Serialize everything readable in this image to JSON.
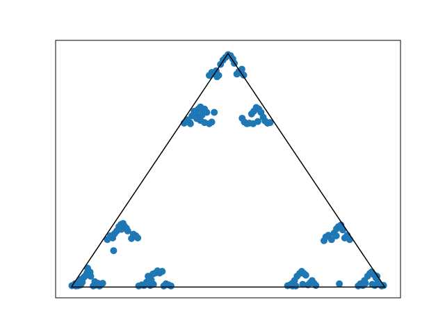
{
  "chart_data": {
    "type": "scatter",
    "title": "",
    "xlabel": "",
    "ylabel": "",
    "axes_ticks": "none",
    "grid": false,
    "legend": "none",
    "colors": {
      "points": "#1f77b4",
      "triangle": "#000000",
      "frame": "#000000"
    },
    "xlim": [
      -0.05,
      1.05
    ],
    "ylim": [
      -0.04,
      0.915
    ],
    "triangle": {
      "x": [
        0,
        0.5,
        1,
        0
      ],
      "y": [
        0,
        0.866,
        0,
        0
      ]
    },
    "series": [
      {
        "points": [
          [
            0.002,
            0.005
          ],
          [
            0.008,
            0.006
          ],
          [
            0.015,
            0.004
          ],
          [
            0.022,
            0.005
          ],
          [
            0.012,
            0.012
          ],
          [
            0.02,
            0.014
          ],
          [
            0.03,
            0.008
          ],
          [
            0.035,
            0.018
          ],
          [
            0.028,
            0.028
          ],
          [
            0.04,
            0.036
          ],
          [
            0.045,
            0.042
          ],
          [
            0.05,
            0.052
          ],
          [
            0.055,
            0.06
          ],
          [
            0.06,
            0.055
          ],
          [
            0.052,
            0.07
          ],
          [
            0.062,
            0.04
          ],
          [
            0.07,
            0.004
          ],
          [
            0.078,
            0.007
          ],
          [
            0.085,
            0.014
          ],
          [
            0.09,
            0.004
          ],
          [
            0.075,
            0.02
          ],
          [
            0.095,
            0.008
          ],
          [
            0.1,
            0.014
          ],
          [
            0.215,
            0.004
          ],
          [
            0.225,
            0.008
          ],
          [
            0.232,
            0.006
          ],
          [
            0.24,
            0.018
          ],
          [
            0.248,
            0.014
          ],
          [
            0.255,
            0.026
          ],
          [
            0.245,
            0.04
          ],
          [
            0.26,
            0.048
          ],
          [
            0.268,
            0.052
          ],
          [
            0.275,
            0.06
          ],
          [
            0.282,
            0.052
          ],
          [
            0.29,
            0.058
          ],
          [
            0.252,
            0.006
          ],
          [
            0.262,
            0.01
          ],
          [
            0.295,
            0.004
          ],
          [
            0.302,
            0.012
          ],
          [
            0.31,
            0.008
          ],
          [
            0.318,
            0.004
          ],
          [
            0.115,
            0.176
          ],
          [
            0.125,
            0.19
          ],
          [
            0.132,
            0.182
          ],
          [
            0.138,
            0.198
          ],
          [
            0.145,
            0.208
          ],
          [
            0.152,
            0.224
          ],
          [
            0.158,
            0.232
          ],
          [
            0.165,
            0.236
          ],
          [
            0.17,
            0.225
          ],
          [
            0.176,
            0.218
          ],
          [
            0.18,
            0.208
          ],
          [
            0.192,
            0.18
          ],
          [
            0.198,
            0.196
          ],
          [
            0.206,
            0.19
          ],
          [
            0.212,
            0.182
          ],
          [
            0.135,
            0.135
          ],
          [
            0.16,
            0.214
          ],
          [
            0.36,
            0.608
          ],
          [
            0.37,
            0.62
          ],
          [
            0.378,
            0.61
          ],
          [
            0.385,
            0.635
          ],
          [
            0.392,
            0.652
          ],
          [
            0.398,
            0.64
          ],
          [
            0.405,
            0.66
          ],
          [
            0.412,
            0.668
          ],
          [
            0.418,
            0.654
          ],
          [
            0.425,
            0.66
          ],
          [
            0.432,
            0.648
          ],
          [
            0.412,
            0.618
          ],
          [
            0.425,
            0.61
          ],
          [
            0.44,
            0.606
          ],
          [
            0.448,
            0.612
          ],
          [
            0.38,
            0.606
          ],
          [
            0.4,
            0.625
          ],
          [
            0.417,
            0.638
          ],
          [
            0.456,
            0.648
          ],
          [
            0.44,
            0.785
          ],
          [
            0.448,
            0.796
          ],
          [
            0.455,
            0.79
          ],
          [
            0.462,
            0.802
          ],
          [
            0.47,
            0.785
          ],
          [
            0.476,
            0.826
          ],
          [
            0.484,
            0.842
          ],
          [
            0.492,
            0.852
          ],
          [
            0.5,
            0.862
          ],
          [
            0.508,
            0.858
          ],
          [
            0.515,
            0.846
          ],
          [
            0.52,
            0.83
          ],
          [
            0.528,
            0.79
          ],
          [
            0.535,
            0.8
          ],
          [
            0.542,
            0.794
          ],
          [
            0.55,
            0.786
          ],
          [
            0.544,
            0.808
          ],
          [
            0.465,
            0.78
          ],
          [
            0.545,
            0.626
          ],
          [
            0.552,
            0.612
          ],
          [
            0.56,
            0.606
          ],
          [
            0.568,
            0.608
          ],
          [
            0.575,
            0.642
          ],
          [
            0.582,
            0.652
          ],
          [
            0.59,
            0.666
          ],
          [
            0.598,
            0.66
          ],
          [
            0.605,
            0.648
          ],
          [
            0.612,
            0.63
          ],
          [
            0.618,
            0.616
          ],
          [
            0.626,
            0.608
          ],
          [
            0.634,
            0.61
          ],
          [
            0.595,
            0.614
          ],
          [
            0.58,
            0.606
          ],
          [
            0.69,
            0.005
          ],
          [
            0.698,
            0.008
          ],
          [
            0.705,
            0.014
          ],
          [
            0.712,
            0.024
          ],
          [
            0.72,
            0.04
          ],
          [
            0.728,
            0.05
          ],
          [
            0.735,
            0.058
          ],
          [
            0.742,
            0.05
          ],
          [
            0.748,
            0.044
          ],
          [
            0.755,
            0.008
          ],
          [
            0.762,
            0.016
          ],
          [
            0.768,
            0.024
          ],
          [
            0.774,
            0.014
          ],
          [
            0.78,
            0.006
          ],
          [
            0.706,
            0.004
          ],
          [
            0.716,
            0.004
          ],
          [
            0.738,
            0.01
          ],
          [
            0.806,
            0.172
          ],
          [
            0.812,
            0.186
          ],
          [
            0.82,
            0.192
          ],
          [
            0.83,
            0.176
          ],
          [
            0.838,
            0.2
          ],
          [
            0.846,
            0.216
          ],
          [
            0.852,
            0.224
          ],
          [
            0.86,
            0.23
          ],
          [
            0.866,
            0.212
          ],
          [
            0.872,
            0.182
          ],
          [
            0.88,
            0.192
          ],
          [
            0.888,
            0.176
          ],
          [
            0.845,
            0.19
          ],
          [
            0.915,
            0.004
          ],
          [
            0.922,
            0.012
          ],
          [
            0.93,
            0.006
          ],
          [
            0.938,
            0.014
          ],
          [
            0.945,
            0.04
          ],
          [
            0.952,
            0.05
          ],
          [
            0.958,
            0.056
          ],
          [
            0.965,
            0.046
          ],
          [
            0.972,
            0.034
          ],
          [
            0.978,
            0.018
          ],
          [
            0.984,
            0.01
          ],
          [
            0.99,
            0.004
          ],
          [
            0.996,
            0.006
          ],
          [
            0.935,
            0.024
          ],
          [
            0.96,
            0.01
          ],
          [
            0.968,
            0.006
          ],
          [
            0.975,
            0.04
          ],
          [
            0.855,
            0.012
          ]
        ]
      }
    ]
  }
}
